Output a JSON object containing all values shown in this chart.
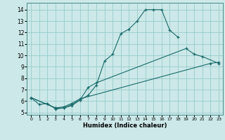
{
  "xlabel": "Humidex (Indice chaleur)",
  "background_color": "#cce8e8",
  "grid_color": "#99cccc",
  "line_color": "#1a6b6b",
  "xlim": [
    -0.5,
    23.5
  ],
  "ylim": [
    4.8,
    14.6
  ],
  "xticks": [
    0,
    1,
    2,
    3,
    4,
    5,
    6,
    7,
    8,
    9,
    10,
    11,
    12,
    13,
    14,
    15,
    16,
    17,
    18,
    19,
    20,
    21,
    22,
    23
  ],
  "yticks": [
    5,
    6,
    7,
    8,
    9,
    10,
    11,
    12,
    13,
    14
  ],
  "curve1_x": [
    0,
    1,
    2,
    3,
    4,
    5,
    6,
    7,
    8,
    9,
    10,
    11,
    12,
    13,
    14,
    15,
    16,
    17,
    18
  ],
  "curve1_y": [
    6.3,
    5.7,
    5.8,
    5.3,
    5.4,
    5.6,
    6.1,
    6.5,
    7.4,
    9.5,
    10.1,
    11.9,
    12.3,
    13.0,
    14.0,
    14.0,
    14.0,
    12.2,
    11.6
  ],
  "curve2_x": [
    0,
    3,
    4,
    5,
    6,
    7,
    8,
    19,
    20,
    21,
    23
  ],
  "curve2_y": [
    6.3,
    5.4,
    5.4,
    5.7,
    6.1,
    7.2,
    7.6,
    10.6,
    10.1,
    9.9,
    9.3
  ],
  "curve3_x": [
    0,
    3,
    4,
    5,
    6,
    22,
    23
  ],
  "curve3_y": [
    6.3,
    5.4,
    5.5,
    5.8,
    6.2,
    9.3,
    9.4
  ]
}
